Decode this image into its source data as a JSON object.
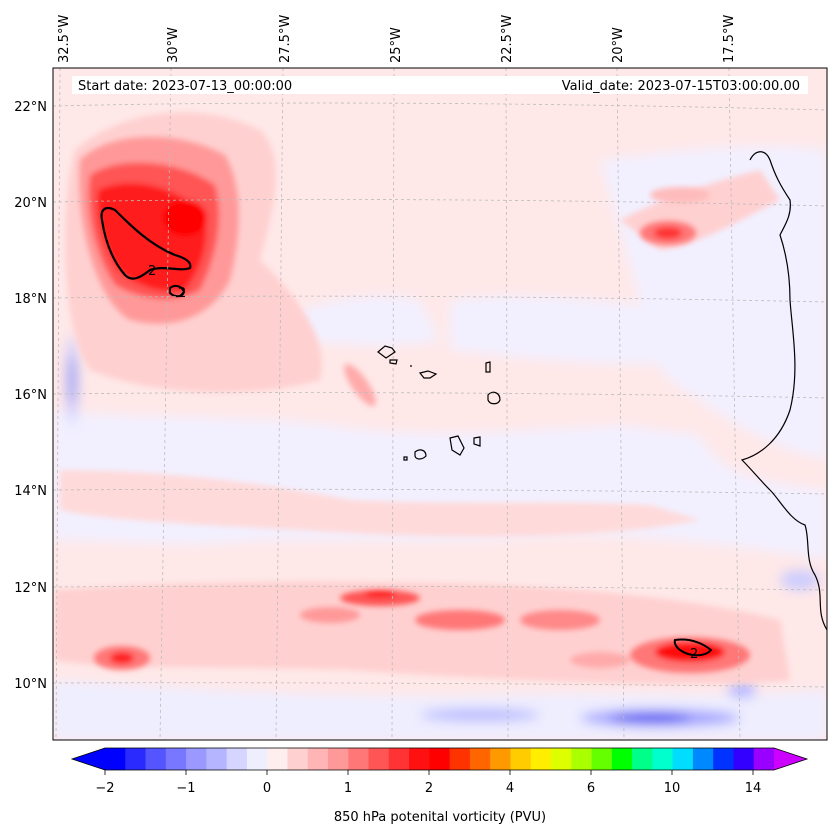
{
  "map": {
    "start_date_label": "Start date: 2023-07-13_00:00:00",
    "valid_date_label": "Valid_date: 2023-07-15T03:00:00.00",
    "lon_ticks": [
      "32.5°W",
      "30°W",
      "27.5°W",
      "25°W",
      "22.5°W",
      "20°W",
      "17.5°W"
    ],
    "lat_ticks": [
      "22°N",
      "20°N",
      "18°N",
      "16°N",
      "14°N",
      "12°N",
      "10°N"
    ],
    "contour_label": "2",
    "colors": {
      "land_outline": "#000000",
      "gridline": "#bbbbbb",
      "background_field": "#ffe8e8"
    }
  },
  "colorbar": {
    "label": "850 hPa potenital vorticity (PVU)",
    "tick_labels": [
      "−2",
      "−1",
      "0",
      "1",
      "2",
      "4",
      "6",
      "10",
      "14"
    ],
    "colors": [
      "#0000ff",
      "#2a2aff",
      "#5555ff",
      "#7777ff",
      "#9999ff",
      "#b5b5ff",
      "#d5d5ff",
      "#eeeeff",
      "#ffeeee",
      "#ffd0d0",
      "#ffb5b5",
      "#ff9999",
      "#ff7777",
      "#ff5555",
      "#ff3333",
      "#ff1111",
      "#ff0000",
      "#ff3300",
      "#ff6600",
      "#ff9900",
      "#ffcc00",
      "#ffee00",
      "#ddff00",
      "#aaff00",
      "#66ff00",
      "#00ff00",
      "#00ff88",
      "#00ffcc",
      "#00ddff",
      "#0088ff",
      "#0033ff",
      "#3300ff",
      "#9900ff"
    ],
    "extend_low_color": "#0000ff",
    "extend_high_color": "#cc00ff"
  }
}
